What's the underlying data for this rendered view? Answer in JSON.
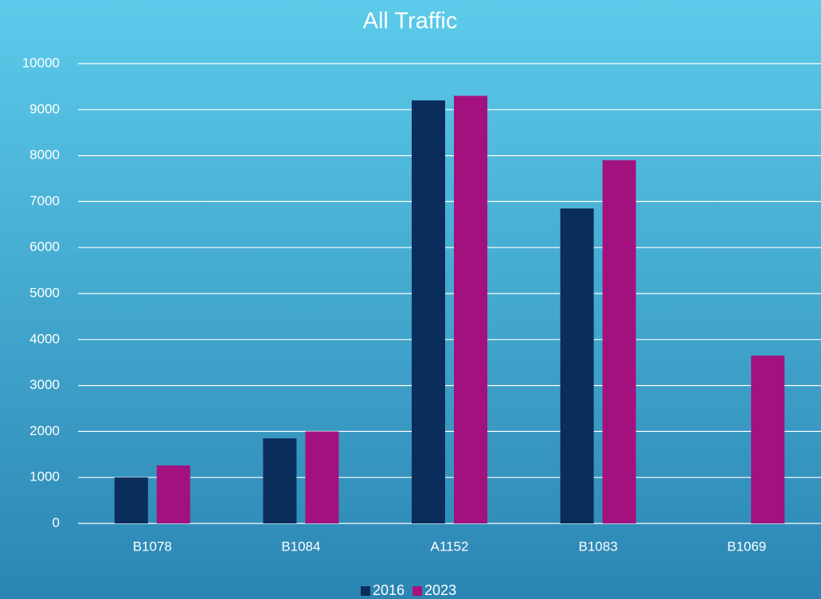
{
  "chart_data": {
    "type": "bar",
    "title": "All Traffic",
    "categories": [
      "B1078",
      "B1084",
      "A1152",
      "B1083",
      "B1069"
    ],
    "series": [
      {
        "name": "2016",
        "color": "#0a2d5c",
        "values": [
          1000,
          1850,
          9200,
          6850,
          null
        ]
      },
      {
        "name": "2023",
        "color": "#a3117f",
        "values": [
          1260,
          2000,
          9300,
          7900,
          3650
        ]
      }
    ],
    "ylim": [
      0,
      10000
    ],
    "yticks": [
      0,
      1000,
      2000,
      3000,
      4000,
      5000,
      6000,
      7000,
      8000,
      9000,
      10000
    ],
    "grid": true,
    "legend": "bottom"
  }
}
